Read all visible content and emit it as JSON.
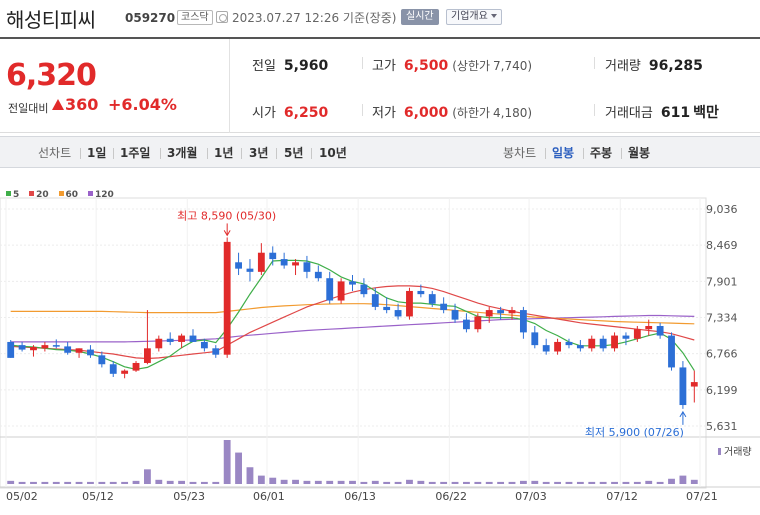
{
  "header": {
    "name": "해성티피씨",
    "code": "059270",
    "market": "코스닥",
    "time": "2023.07.27 12:26 기준(장중)",
    "live_btn": "실시간",
    "info_btn": "기업개요"
  },
  "price": {
    "current": "6,320",
    "change_label": "전일대비",
    "change": "360",
    "change_pct": "+6.04%",
    "colors": {
      "up": "#e12a2a",
      "down": "#2c6fd6"
    }
  },
  "stats": {
    "prev_label": "전일",
    "prev": "5,960",
    "high_label": "고가",
    "high": "6,500",
    "upper_label": "(상한가",
    "upper": "7,740)",
    "volume_label": "거래량",
    "volume": "96,285",
    "open_label": "시가",
    "open": "6,250",
    "low_label": "저가",
    "low": "6,000",
    "lower_label": "(하한가",
    "lower": "4,180)",
    "amount_label": "거래대금",
    "amount": "611",
    "amount_unit": "백만"
  },
  "tabs": {
    "line_label": "선차트",
    "periods": [
      "1일",
      "1주일",
      "3개월",
      "1년",
      "3년",
      "5년",
      "10년"
    ],
    "candle_label": "봉차트",
    "candles": [
      "일봉",
      "주봉",
      "월봉"
    ],
    "selected_candle": "일봉"
  },
  "chart_data": {
    "type": "candlestick",
    "legend": [
      {
        "name": "5",
        "color": "#3fae49"
      },
      {
        "name": "20",
        "color": "#e04848"
      },
      {
        "name": "60",
        "color": "#f29b30"
      },
      {
        "name": "120",
        "color": "#9a62c9"
      }
    ],
    "y_ticks": [
      "9,036",
      "8,469",
      "7,901",
      "7,334",
      "6,766",
      "6,199",
      "5,631"
    ],
    "ylim": [
      5631,
      9036
    ],
    "x_ticks": [
      "05/02",
      "05/12",
      "05/23",
      "06/01",
      "06/13",
      "06/22",
      "07/03",
      "07/12",
      "07/21"
    ],
    "high_note": "최고 8,590 (05/30)",
    "low_note": "최저 5,900 (07/26)",
    "volume_label": "거래량",
    "candles": [
      [
        6950,
        6980,
        6700,
        6700
      ],
      [
        6900,
        6950,
        6800,
        6830
      ],
      [
        6820,
        6900,
        6720,
        6870
      ],
      [
        6850,
        6950,
        6800,
        6900
      ],
      [
        6900,
        6990,
        6850,
        6880
      ],
      [
        6880,
        6950,
        6750,
        6780
      ],
      [
        6780,
        6850,
        6700,
        6850
      ],
      [
        6830,
        6900,
        6700,
        6740
      ],
      [
        6740,
        6800,
        6550,
        6600
      ],
      [
        6600,
        6650,
        6400,
        6450
      ],
      [
        6450,
        6520,
        6380,
        6500
      ],
      [
        6500,
        6650,
        6480,
        6620
      ],
      [
        6620,
        7450,
        6600,
        6850
      ],
      [
        6850,
        7050,
        6800,
        7000
      ],
      [
        7000,
        7100,
        6900,
        6950
      ],
      [
        6950,
        7080,
        6850,
        7050
      ],
      [
        7050,
        7150,
        6950,
        6950
      ],
      [
        6950,
        7000,
        6800,
        6850
      ],
      [
        6850,
        6900,
        6700,
        6750
      ],
      [
        6750,
        8590,
        6700,
        8520
      ],
      [
        8200,
        8350,
        8000,
        8100
      ],
      [
        8100,
        8250,
        7900,
        8050
      ],
      [
        8050,
        8500,
        8000,
        8350
      ],
      [
        8350,
        8450,
        8150,
        8250
      ],
      [
        8250,
        8350,
        8100,
        8150
      ],
      [
        8150,
        8250,
        8000,
        8200
      ],
      [
        8200,
        8300,
        7950,
        8050
      ],
      [
        8050,
        8150,
        7900,
        7950
      ],
      [
        7950,
        8050,
        7550,
        7600
      ],
      [
        7600,
        7950,
        7550,
        7900
      ],
      [
        7900,
        8000,
        7750,
        7850
      ],
      [
        7850,
        7950,
        7650,
        7700
      ],
      [
        7700,
        7800,
        7450,
        7500
      ],
      [
        7500,
        7650,
        7400,
        7450
      ],
      [
        7450,
        7550,
        7300,
        7350
      ],
      [
        7350,
        7800,
        7300,
        7750
      ],
      [
        7750,
        7850,
        7650,
        7700
      ],
      [
        7700,
        7750,
        7500,
        7550
      ],
      [
        7550,
        7650,
        7400,
        7450
      ],
      [
        7450,
        7550,
        7250,
        7300
      ],
      [
        7300,
        7400,
        7100,
        7150
      ],
      [
        7150,
        7400,
        7100,
        7350
      ],
      [
        7350,
        7500,
        7250,
        7450
      ],
      [
        7450,
        7500,
        7300,
        7400
      ],
      [
        7400,
        7500,
        7300,
        7450
      ],
      [
        7450,
        7500,
        7000,
        7100
      ],
      [
        7100,
        7200,
        6850,
        6900
      ],
      [
        6900,
        7000,
        6750,
        6800
      ],
      [
        6800,
        7000,
        6750,
        6950
      ],
      [
        6950,
        7000,
        6850,
        6900
      ],
      [
        6900,
        6980,
        6800,
        6850
      ],
      [
        6850,
        7050,
        6800,
        7000
      ],
      [
        7000,
        7050,
        6800,
        6850
      ],
      [
        6850,
        7100,
        6800,
        7050
      ],
      [
        7050,
        7100,
        6900,
        7000
      ],
      [
        7000,
        7200,
        6950,
        7150
      ],
      [
        7150,
        7300,
        7050,
        7200
      ],
      [
        7200,
        7250,
        7000,
        7050
      ],
      [
        7050,
        7100,
        6500,
        6550
      ],
      [
        6550,
        6650,
        5900,
        5960
      ],
      [
        6250,
        6500,
        6000,
        6320
      ]
    ],
    "volumes": [
      3,
      2,
      2,
      2,
      2,
      2,
      2,
      2,
      2,
      2,
      2,
      3,
      14,
      4,
      3,
      3,
      2,
      2,
      2,
      42,
      30,
      16,
      8,
      6,
      4,
      4,
      3,
      3,
      3,
      3,
      3,
      2,
      3,
      2,
      2,
      4,
      3,
      2,
      2,
      2,
      2,
      2,
      2,
      2,
      2,
      3,
      3,
      2,
      2,
      2,
      2,
      2,
      2,
      2,
      2,
      2,
      3,
      2,
      5,
      8,
      4
    ],
    "ma5": [
      6900,
      6880,
      6870,
      6850,
      6830,
      6820,
      6800,
      6760,
      6710,
      6640,
      6560,
      6520,
      6550,
      6640,
      6730,
      6860,
      6960,
      6980,
      6940,
      7160,
      7420,
      7700,
      7960,
      8220,
      8230,
      8230,
      8220,
      8170,
      8080,
      7970,
      7900,
      7860,
      7750,
      7640,
      7580,
      7560,
      7560,
      7540,
      7520,
      7510,
      7430,
      7350,
      7330,
      7330,
      7330,
      7300,
      7240,
      7130,
      7050,
      6950,
      6890,
      6890,
      6890,
      6910,
      6950,
      7000,
      7050,
      7090,
      6990,
      6780,
      6500
    ],
    "ma20": [
      6880,
      6870,
      6860,
      6850,
      6840,
      6830,
      6820,
      6800,
      6780,
      6760,
      6730,
      6700,
      6690,
      6700,
      6720,
      6740,
      6760,
      6780,
      6800,
      6900,
      7000,
      7100,
      7180,
      7260,
      7340,
      7420,
      7500,
      7560,
      7620,
      7680,
      7730,
      7770,
      7800,
      7820,
      7830,
      7830,
      7820,
      7790,
      7740,
      7680,
      7620,
      7560,
      7510,
      7470,
      7430,
      7400,
      7370,
      7340,
      7310,
      7280,
      7250,
      7230,
      7210,
      7190,
      7170,
      7150,
      7130,
      7110,
      7080,
      7030,
      6980
    ],
    "ma60": [
      7430,
      7430,
      7430,
      7430,
      7430,
      7430,
      7430,
      7430,
      7430,
      7425,
      7420,
      7415,
      7410,
      7410,
      7410,
      7410,
      7410,
      7410,
      7410,
      7430,
      7450,
      7470,
      7490,
      7505,
      7515,
      7525,
      7535,
      7540,
      7545,
      7548,
      7550,
      7550,
      7545,
      7535,
      7520,
      7505,
      7490,
      7475,
      7460,
      7445,
      7430,
      7415,
      7400,
      7385,
      7370,
      7355,
      7340,
      7330,
      7320,
      7310,
      7300,
      7290,
      7280,
      7270,
      7265,
      7260,
      7255,
      7250,
      7245,
      7240,
      7235
    ],
    "ma120": [
      6950,
      6950,
      6950,
      6950,
      6950,
      6950,
      6950,
      6950,
      6950,
      6950,
      6950,
      6955,
      6960,
      6965,
      6970,
      6975,
      6980,
      6990,
      7000,
      7020,
      7040,
      7055,
      7070,
      7085,
      7100,
      7115,
      7130,
      7140,
      7150,
      7160,
      7170,
      7180,
      7190,
      7200,
      7210,
      7220,
      7230,
      7240,
      7250,
      7260,
      7270,
      7280,
      7290,
      7300,
      7305,
      7310,
      7315,
      7320,
      7325,
      7330,
      7335,
      7340,
      7345,
      7350,
      7355,
      7360,
      7365,
      7365,
      7360,
      7355,
      7350
    ]
  }
}
